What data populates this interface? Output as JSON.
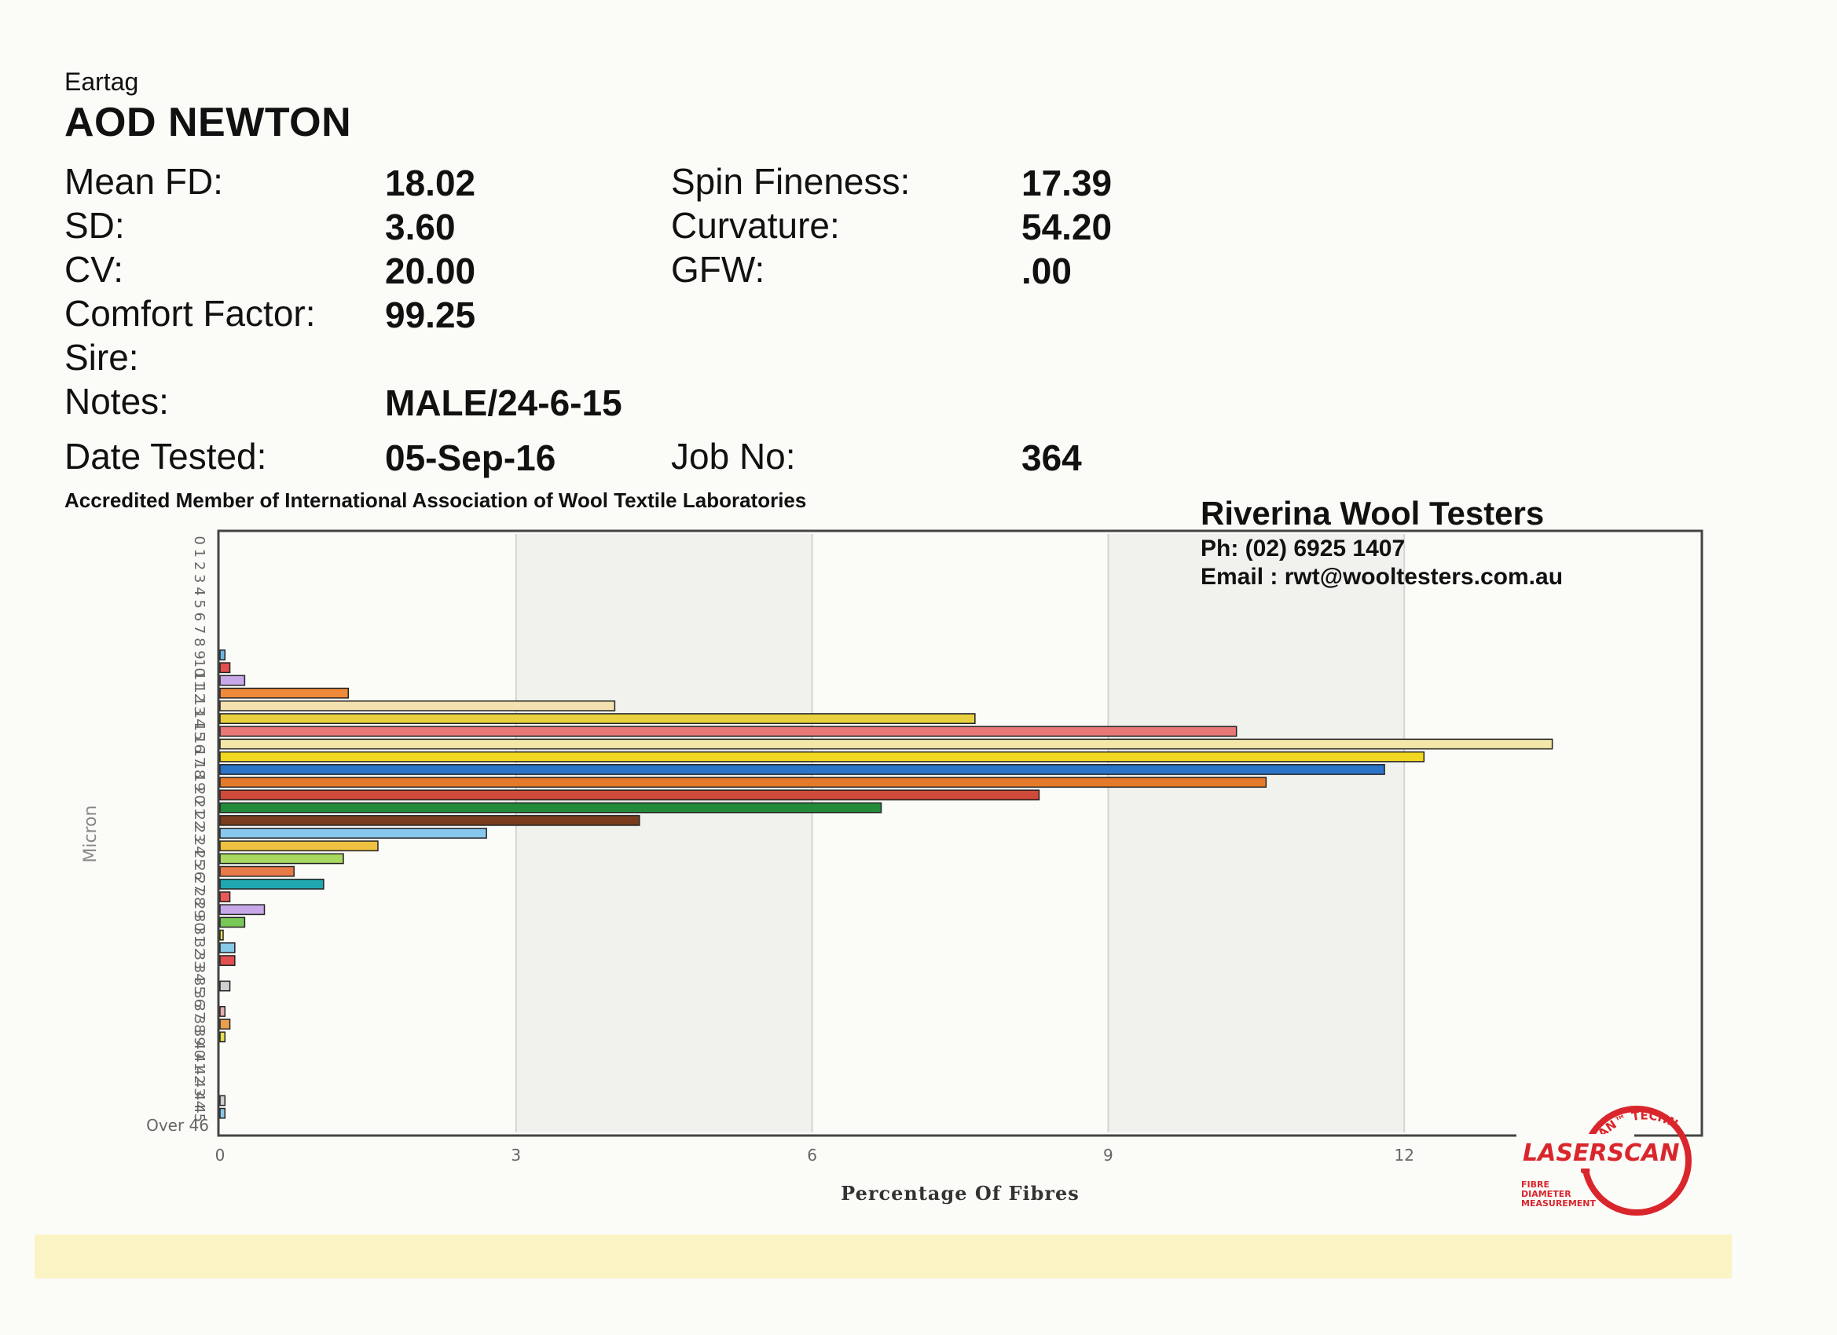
{
  "header": {
    "eartag_label": "Eartag",
    "eartag_value": "AOD NEWTON"
  },
  "stats_left": [
    {
      "label": "Mean FD:",
      "value": "18.02"
    },
    {
      "label": "SD:",
      "value": "3.60"
    },
    {
      "label": "CV:",
      "value": "20.00"
    },
    {
      "label": "Comfort Factor:",
      "value": "99.25"
    },
    {
      "label": "Sire:",
      "value": ""
    },
    {
      "label": "Notes:",
      "value": "MALE/24-6-15"
    },
    {
      "label": "Date Tested:",
      "value": "05-Sep-16"
    }
  ],
  "stats_right": [
    {
      "label": "Spin Fineness:",
      "value": "17.39"
    },
    {
      "label": "Curvature:",
      "value": "54.20"
    },
    {
      "label": "GFW:",
      "value": ".00"
    },
    {
      "label": "Job No:",
      "value": "364"
    }
  ],
  "accreditation": "Accredited Member of International Association of Wool Textile Laboratories",
  "company": {
    "name": "Riverina Wool Testers",
    "phone": "Ph: (02) 6925 1407",
    "email": "Email : rwt@wooltesters.com.au"
  },
  "logo": {
    "arc_text": "SIROLAN™ TECHNOLOGY",
    "brand": "LASERSCAN",
    "sub_lines": [
      "FIBRE",
      "DIAMETER",
      "MEASUREMENT"
    ],
    "color": "#d9262c"
  },
  "chart_data": {
    "type": "bar",
    "orientation": "horizontal",
    "xlabel": "Percentage Of Fibres",
    "ylabel": "Micron",
    "xlim": [
      0,
      15
    ],
    "xticks": [
      "0",
      "3",
      "6",
      "9",
      "12"
    ],
    "categories": [
      "0",
      "1",
      "2",
      "3",
      "4",
      "5",
      "6",
      "7",
      "8",
      "9",
      "10",
      "11",
      "12",
      "13",
      "14",
      "15",
      "16",
      "17",
      "18",
      "19",
      "20",
      "21",
      "22",
      "23",
      "24",
      "25",
      "26",
      "27",
      "28",
      "29",
      "30",
      "31",
      "32",
      "33",
      "34",
      "35",
      "36",
      "37",
      "38",
      "39",
      "40",
      "41",
      "42",
      "43",
      "44",
      "45",
      "Over 46"
    ],
    "values": [
      0,
      0,
      0,
      0,
      0,
      0,
      0,
      0,
      0,
      0.05,
      0.1,
      0.25,
      1.3,
      4.0,
      7.65,
      10.3,
      13.5,
      12.2,
      11.8,
      10.6,
      8.3,
      6.7,
      4.25,
      2.7,
      1.6,
      1.25,
      0.75,
      1.05,
      0.1,
      0.45,
      0.25,
      0.03,
      0.15,
      0.15,
      0,
      0.1,
      0,
      0.05,
      0.1,
      0.05,
      0,
      0,
      0,
      0,
      0.05,
      0.05,
      0
    ],
    "colors": [
      "#88c8e8",
      "#88c8e8",
      "#88c8e8",
      "#88c8e8",
      "#88c8e8",
      "#88c8e8",
      "#88c8e8",
      "#88c8e8",
      "#6fb7e3",
      "#6fb7e3",
      "#e05050",
      "#c8a8e8",
      "#ef8a3a",
      "#f3e2b0",
      "#e8d040",
      "#e87878",
      "#f2e7a8",
      "#f2d820",
      "#2b74c8",
      "#e47a2a",
      "#d04a3a",
      "#238a3a",
      "#7a3c1c",
      "#88c8ee",
      "#f0c040",
      "#a8d860",
      "#e87a4a",
      "#20a8b0",
      "#e85858",
      "#c8a8e8",
      "#78c858",
      "#e8e050",
      "#88c8e8",
      "#e05050",
      "#c8a8e8",
      "#d0d0d0",
      "#f0c070",
      "#e8b0b0",
      "#e8a050",
      "#e8e050",
      "#6fb7e3",
      "#d0d0d0",
      "#d0d0d0",
      "#d0d0d0",
      "#d0d0d0",
      "#88c8e8",
      "#f0c070"
    ],
    "grid": true,
    "legend": "none"
  }
}
